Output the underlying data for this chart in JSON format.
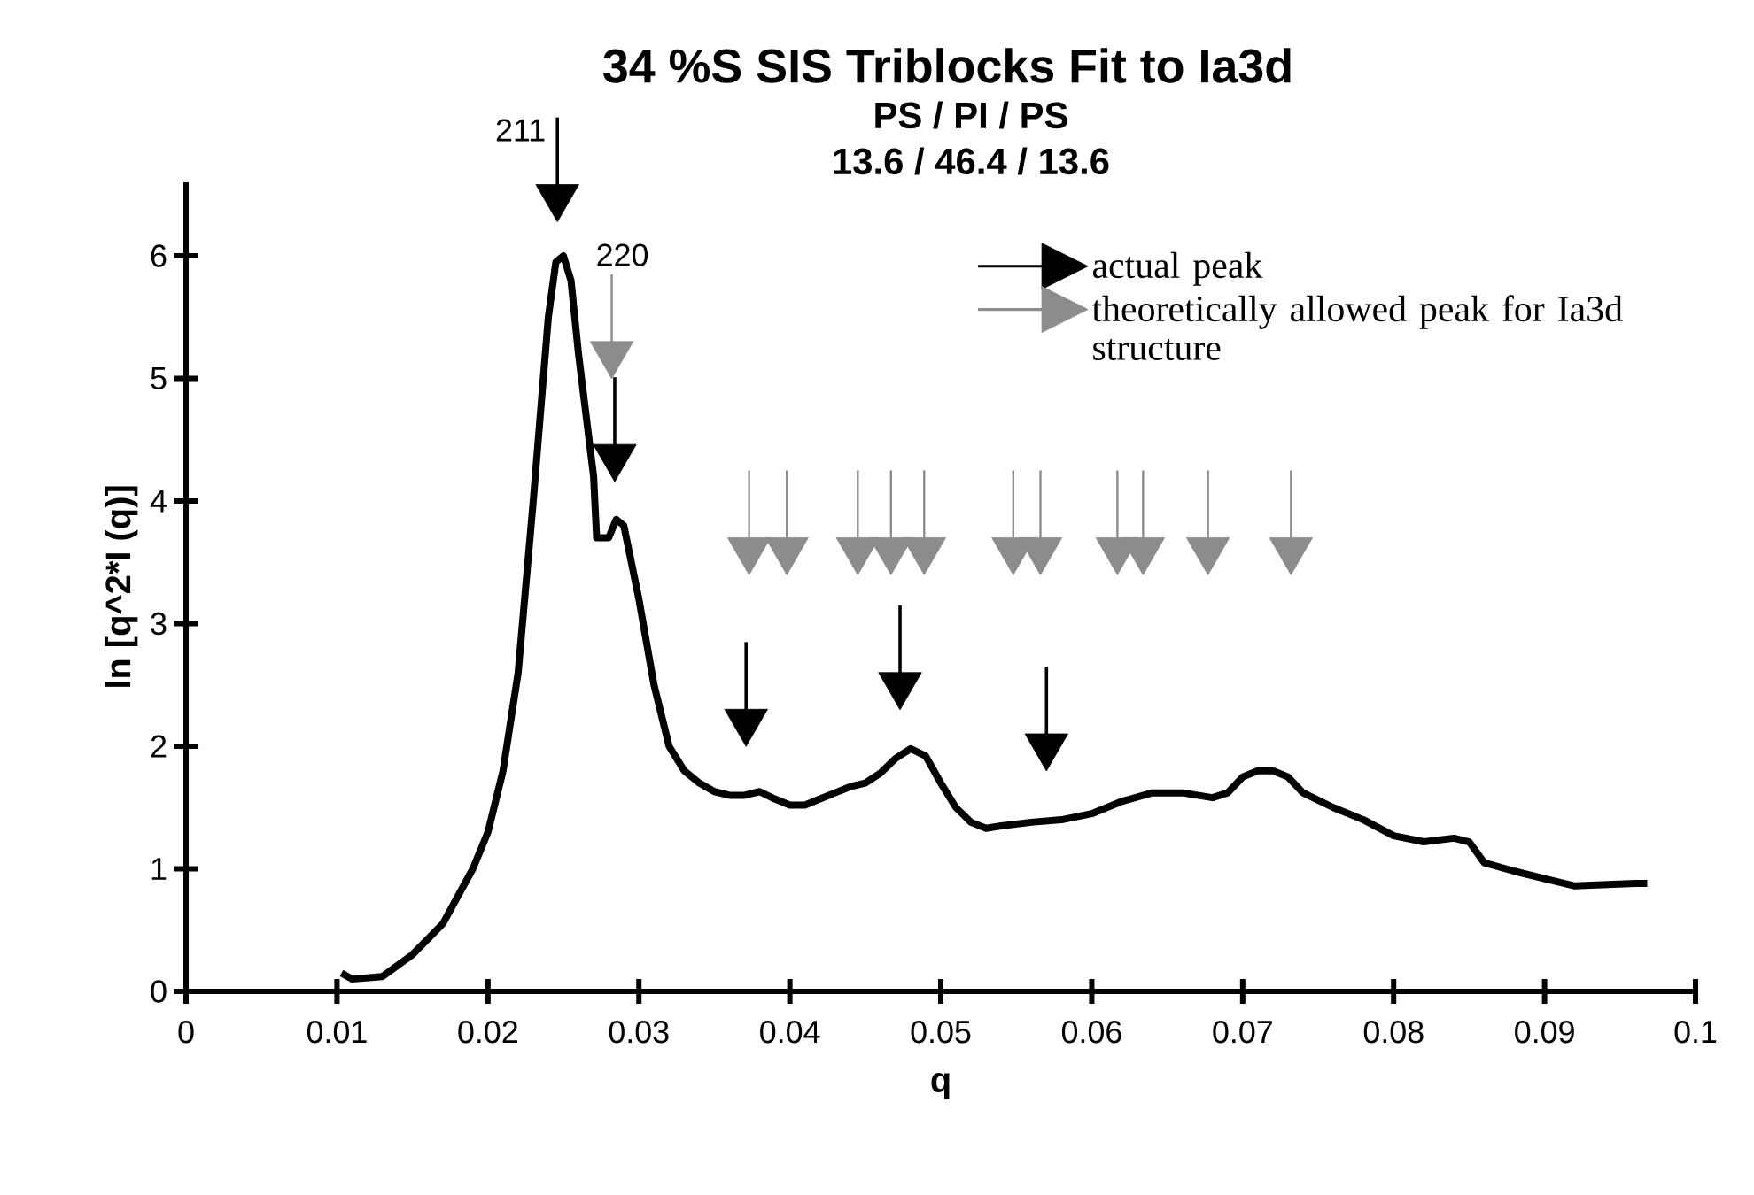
{
  "chart_data": {
    "type": "line",
    "title": "34 %S SIS Triblocks Fit to Ia3d",
    "subtitle": "PS / PI / PS",
    "xlabel": "q",
    "ylabel": "ln [q^2*I (q)]",
    "xlim": [
      0,
      0.1
    ],
    "xticks": [
      0,
      0.01,
      0.02,
      0.03,
      0.04,
      0.05,
      0.06,
      0.07,
      0.08,
      0.09,
      0.1
    ],
    "ylim": [
      0,
      6.6
    ],
    "yticks": [
      0,
      1,
      2,
      3,
      4,
      5,
      6
    ],
    "grid": false,
    "legend": "top right",
    "annotations": [
      "13.6 / 46.4 / 13.6",
      "211",
      "220"
    ],
    "series": [
      {
        "color": "#000000",
        "marker": "none",
        "x": [
          0.0103,
          0.011,
          0.013,
          0.015,
          0.017,
          0.019,
          0.02,
          0.021,
          0.022,
          0.023,
          0.024,
          0.0245,
          0.025,
          0.0255,
          0.026,
          0.027,
          0.0272,
          0.028,
          0.0285,
          0.029,
          0.03,
          0.031,
          0.032,
          0.033,
          0.034,
          0.035,
          0.036,
          0.037,
          0.038,
          0.039,
          0.04,
          0.041,
          0.042,
          0.043,
          0.044,
          0.045,
          0.046,
          0.047,
          0.048,
          0.049,
          0.05,
          0.051,
          0.052,
          0.053,
          0.054,
          0.056,
          0.058,
          0.06,
          0.062,
          0.064,
          0.066,
          0.068,
          0.069,
          0.07,
          0.071,
          0.072,
          0.073,
          0.074,
          0.076,
          0.078,
          0.08,
          0.082,
          0.084,
          0.085,
          0.086,
          0.088,
          0.09,
          0.092,
          0.094,
          0.096,
          0.0968
        ],
        "values": [
          0.15,
          0.1,
          0.12,
          0.3,
          0.55,
          1.0,
          1.3,
          1.8,
          2.6,
          4.0,
          5.5,
          5.95,
          6.0,
          5.8,
          5.2,
          4.2,
          3.7,
          3.7,
          3.85,
          3.8,
          3.2,
          2.5,
          2.0,
          1.8,
          1.7,
          1.63,
          1.6,
          1.6,
          1.63,
          1.57,
          1.52,
          1.52,
          1.57,
          1.62,
          1.67,
          1.7,
          1.78,
          1.9,
          1.98,
          1.92,
          1.7,
          1.5,
          1.38,
          1.33,
          1.35,
          1.38,
          1.4,
          1.45,
          1.55,
          1.62,
          1.62,
          1.58,
          1.62,
          1.75,
          1.8,
          1.8,
          1.75,
          1.62,
          1.5,
          1.4,
          1.27,
          1.22,
          1.25,
          1.22,
          1.05,
          0.98,
          0.92,
          0.86,
          0.87,
          0.88,
          0.88
        ]
      },
      {
        "type": "scatter",
        "name": "actual peak",
        "color": "#000000",
        "marker": "triangle",
        "x": [
          0.0246,
          0.0284,
          0.0371,
          0.0473,
          0.057
        ],
        "values": [
          6.48,
          4.36,
          2.2,
          2.5,
          2.0
        ]
      },
      {
        "type": "scatter",
        "name": "theoretically allowed peak for Ia3d structure",
        "color": "#8c8c8c",
        "marker": "triangle",
        "x": [
          0.0282,
          0.0373,
          0.0398,
          0.0445,
          0.0467,
          0.0489,
          0.0548,
          0.0566,
          0.0617,
          0.0634,
          0.0677,
          0.0732
        ],
        "values": [
          5.2,
          3.6,
          3.6,
          3.6,
          3.6,
          3.6,
          3.6,
          3.6,
          3.6,
          3.6,
          3.6,
          3.6
        ]
      }
    ]
  }
}
